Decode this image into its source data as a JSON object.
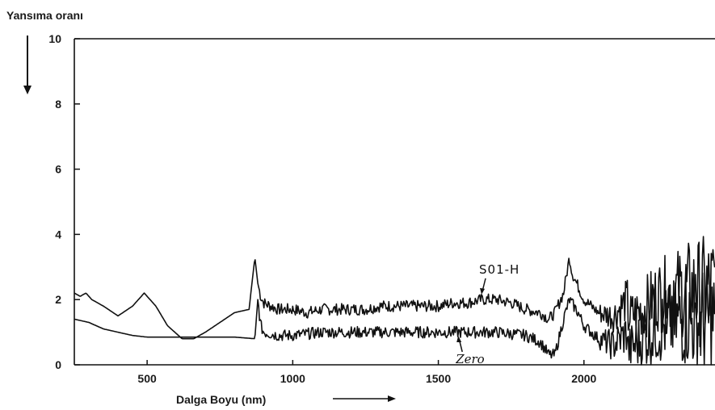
{
  "chart_data": {
    "type": "line",
    "ylabel": "Yansıma oranı",
    "xlabel": "Dalga Boyu  (nm)",
    "xlim": [
      250,
      2450
    ],
    "ylim": [
      0,
      10
    ],
    "x_ticks": [
      500,
      1000,
      1500,
      2000
    ],
    "y_ticks": [
      0,
      2,
      4,
      6,
      8,
      10
    ],
    "grid": false,
    "series": [
      {
        "name": "S01-H",
        "color": "#111111",
        "x": [
          250,
          270,
          290,
          310,
          350,
          400,
          450,
          490,
          530,
          570,
          620,
          660,
          700,
          750,
          800,
          850,
          870,
          880,
          890,
          900,
          950,
          1000,
          1050,
          1100,
          1150,
          1200,
          1250,
          1300,
          1350,
          1400,
          1450,
          1500,
          1550,
          1600,
          1650,
          1700,
          1750,
          1800,
          1850,
          1880,
          1900,
          1930,
          1950,
          1960,
          1980,
          2000,
          2050,
          2100,
          2150,
          2200,
          2250,
          2300,
          2350,
          2400,
          2450
        ],
        "y": [
          2.2,
          2.1,
          2.2,
          2.0,
          1.8,
          1.5,
          1.8,
          2.2,
          1.8,
          1.2,
          0.8,
          0.8,
          1.0,
          1.3,
          1.6,
          1.7,
          3.3,
          2.5,
          2.1,
          1.9,
          1.7,
          1.7,
          1.6,
          1.7,
          1.7,
          1.7,
          1.7,
          1.8,
          1.8,
          1.8,
          1.8,
          1.8,
          1.9,
          1.9,
          2.0,
          2.0,
          1.9,
          1.7,
          1.6,
          1.4,
          1.6,
          2.2,
          3.3,
          2.8,
          2.4,
          2.0,
          1.6,
          1.5,
          2.0,
          2.4,
          3.0,
          3.2,
          3.5,
          3.6,
          3.8
        ]
      },
      {
        "name": "Zero",
        "color": "#111111",
        "x": [
          250,
          300,
          350,
          400,
          450,
          500,
          600,
          700,
          800,
          870,
          880,
          890,
          900,
          950,
          1000,
          1100,
          1200,
          1300,
          1400,
          1500,
          1600,
          1700,
          1800,
          1850,
          1880,
          1900,
          1930,
          1950,
          1980,
          2000,
          2050,
          2100,
          2150,
          2200,
          2250,
          2300,
          2350,
          2400,
          2450
        ],
        "y": [
          1.4,
          1.3,
          1.1,
          1.0,
          0.9,
          0.85,
          0.85,
          0.85,
          0.85,
          0.8,
          2.0,
          1.2,
          1.0,
          0.9,
          0.9,
          1.0,
          1.0,
          1.0,
          1.0,
          1.0,
          1.0,
          1.0,
          0.9,
          0.7,
          0.3,
          0.3,
          1.4,
          2.0,
          1.6,
          1.2,
          0.8,
          0.6,
          1.0,
          1.5,
          2.0,
          2.3,
          2.6,
          2.7,
          2.9
        ]
      }
    ],
    "annotations": [
      {
        "text": "S01-H",
        "x": 1640,
        "y": 2.8
      },
      {
        "text": "Zero",
        "x": 1560,
        "y": 0.05
      }
    ]
  }
}
